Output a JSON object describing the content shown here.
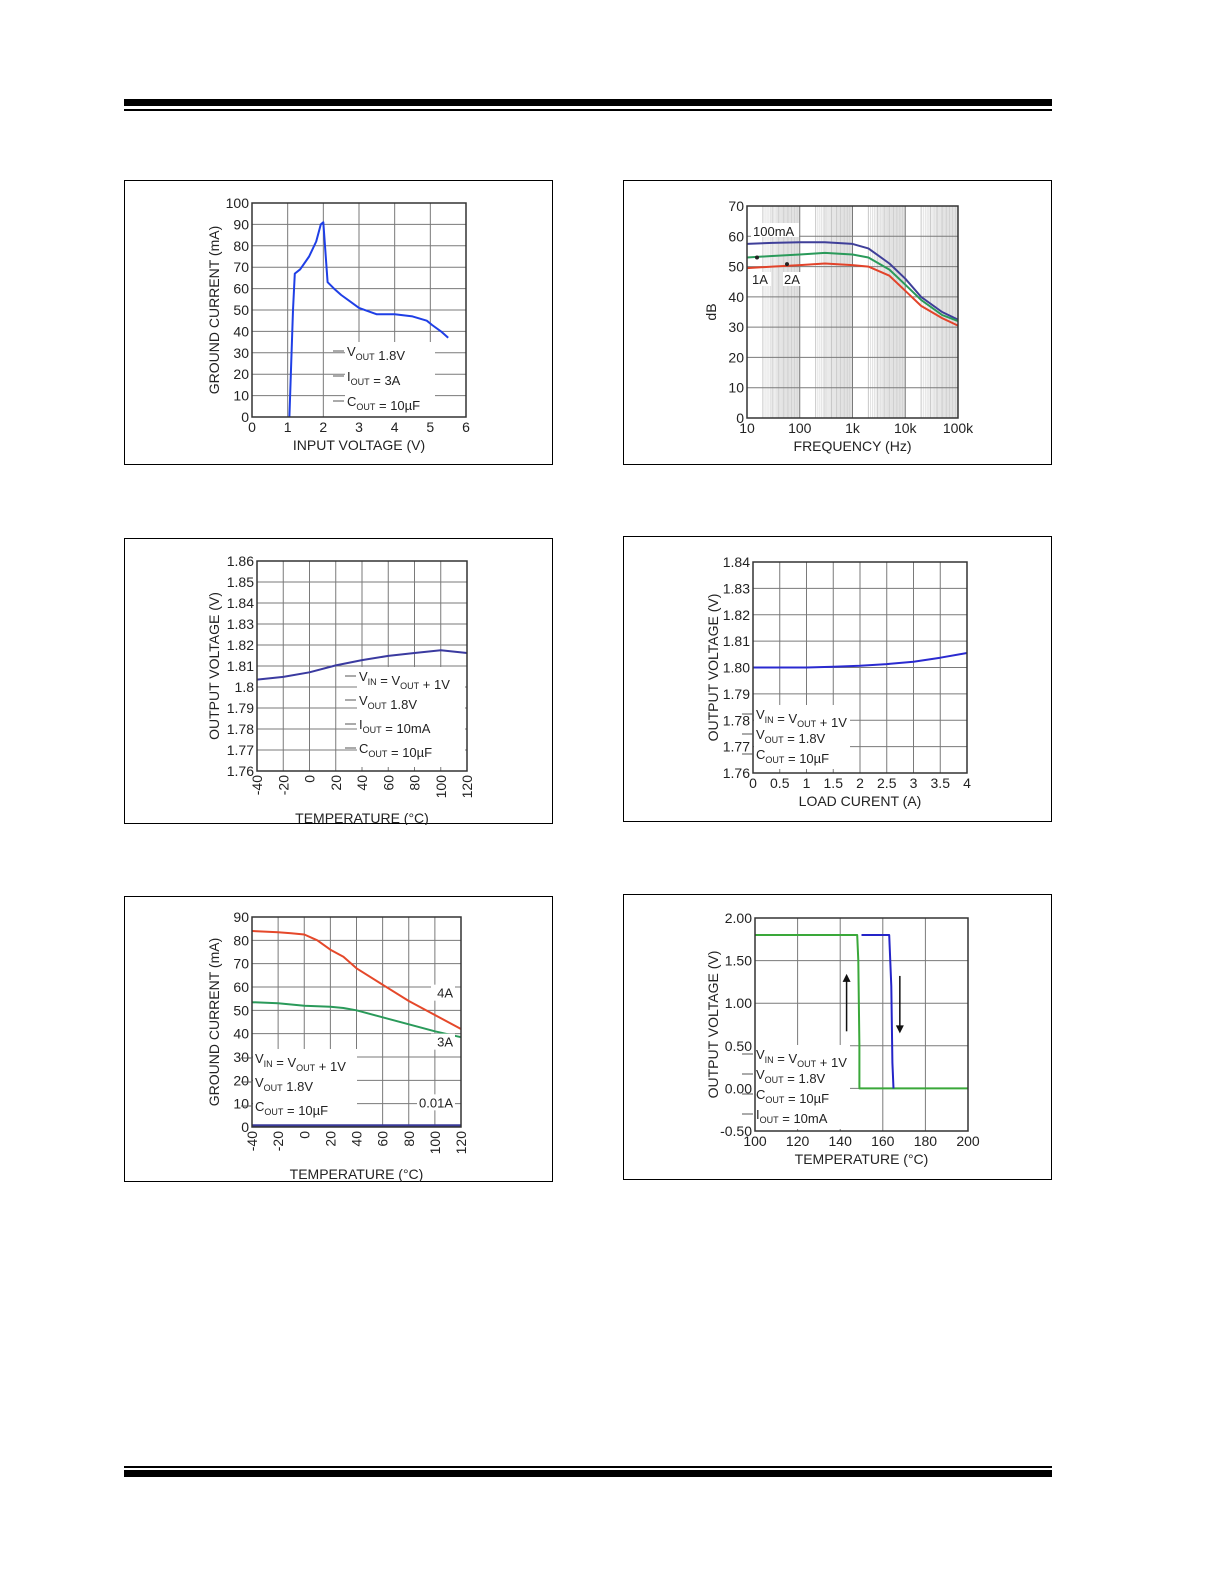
{
  "charts": [
    {
      "id": "c1",
      "chart_data": {
        "type": "line",
        "xlabel": "INPUT VOLTAGE (V)",
        "ylabel": "GROUND CURRENT (mA)",
        "xlim": [
          0,
          6
        ],
        "ylim": [
          0,
          100
        ],
        "xticks": [
          "0",
          "1",
          "2",
          "3",
          "4",
          "5",
          "6"
        ],
        "yticks": [
          "0",
          "10",
          "20",
          "30",
          "40",
          "50",
          "60",
          "70",
          "80",
          "90",
          "100"
        ],
        "grid": true,
        "series": [
          {
            "color": "#1f3fe6",
            "x": [
              1.05,
              1.15,
              1.2,
              1.35,
              1.6,
              1.8,
              1.93,
              2.0,
              2.12,
              2.3,
              2.5,
              2.75,
              3.0,
              3.5,
              4.0,
              4.5,
              4.9,
              5.05,
              5.3,
              5.5
            ],
            "y": [
              0,
              50,
              67,
              69,
              75,
              82,
              90,
              91,
              63,
              60,
              57,
              54,
              51,
              48,
              48,
              47,
              45,
              43,
              40,
              37
            ]
          }
        ],
        "annotations": [
          {
            "main": "V",
            "sub": "OUT",
            "rest": " 1.8V"
          },
          {
            "main": "I",
            "sub": "OUT",
            "rest": " = 3A"
          },
          {
            "main": "C",
            "sub": "OUT",
            "rest": " = 10µF"
          }
        ]
      }
    },
    {
      "id": "c2",
      "chart_data": {
        "type": "line",
        "xlabel": "FREQUENCY (Hz)",
        "ylabel": "dB",
        "xscale": "log",
        "xlim": [
          10,
          100000
        ],
        "ylim": [
          0,
          70
        ],
        "xticks": [
          "10",
          "100",
          "1k",
          "10k",
          "100k"
        ],
        "yticks": [
          "0",
          "10",
          "20",
          "30",
          "40",
          "50",
          "60",
          "70"
        ],
        "grid": true,
        "series": [
          {
            "name": "100mA",
            "color": "#3f3f99",
            "x": [
              10,
              30,
              100,
              300,
              1000,
              2000,
              5000,
              10000,
              20000,
              50000,
              100000
            ],
            "y": [
              57.5,
              57.8,
              58,
              58,
              57.5,
              56,
              51,
              46,
              40,
              35,
              32.5
            ]
          },
          {
            "name": "1A",
            "color": "#2a9a5a",
            "x": [
              10,
              30,
              100,
              300,
              1000,
              2000,
              5000,
              10000,
              20000,
              50000,
              100000
            ],
            "y": [
              53,
              53.5,
              54,
              54.5,
              54,
              53,
              49,
              44,
              39,
              34,
              32
            ]
          },
          {
            "name": "2A",
            "color": "#e2432a",
            "x": [
              10,
              30,
              100,
              300,
              1000,
              2000,
              5000,
              10000,
              20000,
              50000,
              100000
            ],
            "y": [
              49.5,
              50,
              50.5,
              51,
              50.5,
              50,
              47,
              42,
              37,
              33,
              30.5
            ]
          }
        ],
        "series_labels": [
          "100mA",
          "1A",
          "2A"
        ]
      }
    },
    {
      "id": "c3",
      "chart_data": {
        "type": "line",
        "xlabel": "TEMPERATURE (°C)",
        "ylabel": "OUTPUT VOLTAGE (V)",
        "xlim": [
          -40,
          120
        ],
        "ylim": [
          1.76,
          1.86
        ],
        "xticks": [
          "-40",
          "-20",
          "0",
          "20",
          "40",
          "60",
          "80",
          "100",
          "120"
        ],
        "yticks": [
          "1.76",
          "1.77",
          "1.78",
          "1.79",
          "1.8",
          "1.81",
          "1.82",
          "1.83",
          "1.84",
          "1.85",
          "1.86"
        ],
        "grid": true,
        "series": [
          {
            "color": "#3a3aa0",
            "x": [
              -40,
              -20,
              0,
              20,
              40,
              60,
              80,
              100,
              120
            ],
            "y": [
              1.8035,
              1.8048,
              1.807,
              1.8103,
              1.8128,
              1.8148,
              1.8162,
              1.8175,
              1.8162
            ]
          }
        ],
        "annotations": [
          {
            "main": "V",
            "sub": "IN",
            "rest": " = V",
            "sub2": "OUT",
            "rest2": " + 1V"
          },
          {
            "main": "V",
            "sub": "OUT",
            "rest": " 1.8V"
          },
          {
            "main": "I",
            "sub": "OUT",
            "rest": " = 10mA"
          },
          {
            "main": "C",
            "sub": "OUT",
            "rest": " = 10µF"
          }
        ]
      }
    },
    {
      "id": "c4",
      "chart_data": {
        "type": "line",
        "xlabel": "LOAD CURENT (A)",
        "ylabel": "OUTPUT VOLTAGE (V)",
        "xlim": [
          0,
          4
        ],
        "ylim": [
          1.76,
          1.84
        ],
        "xticks": [
          "0",
          "0.5",
          "1",
          "1.5",
          "2",
          "2.5",
          "3",
          "3.5",
          "4"
        ],
        "yticks": [
          "1.76",
          "1.77",
          "1.78",
          "1.79",
          "1.80",
          "1.81",
          "1.82",
          "1.83",
          "1.84"
        ],
        "grid": true,
        "series": [
          {
            "color": "#2a2ad0",
            "x": [
              0,
              0.5,
              1,
              1.5,
              2,
              2.5,
              3,
              3.5,
              4
            ],
            "y": [
              1.8,
              1.8,
              1.8,
              1.8003,
              1.8007,
              1.8013,
              1.8022,
              1.8037,
              1.8055
            ]
          }
        ],
        "annotations": [
          {
            "main": "V",
            "sub": "IN",
            "rest": " = V",
            "sub2": "OUT",
            "rest2": " + 1V"
          },
          {
            "main": "V",
            "sub": "OUT",
            "rest": " = 1.8V"
          },
          {
            "main": "C",
            "sub": "OUT",
            "rest": " = 10µF"
          }
        ]
      }
    },
    {
      "id": "c5",
      "chart_data": {
        "type": "line",
        "xlabel": "TEMPERATURE (°C)",
        "ylabel": "GROUND CURRENT (mA)",
        "xlim": [
          -40,
          120
        ],
        "ylim": [
          0,
          90
        ],
        "xticks": [
          "-40",
          "-20",
          "0",
          "20",
          "40",
          "60",
          "80",
          "100",
          "120"
        ],
        "yticks": [
          "0",
          "10",
          "20",
          "30",
          "40",
          "50",
          "60",
          "70",
          "80",
          "90"
        ],
        "grid": true,
        "series": [
          {
            "name": "4A",
            "color": "#e5482a",
            "x": [
              -40,
              -20,
              -10,
              0,
              10,
              20,
              30,
              40,
              60,
              80,
              100,
              120
            ],
            "y": [
              84,
              83.5,
              83,
              82.5,
              80,
              76,
              73,
              68,
              61,
              54,
              48,
              42
            ]
          },
          {
            "name": "3A",
            "color": "#2a9a5a",
            "x": [
              -40,
              -20,
              0,
              20,
              30,
              40,
              60,
              80,
              100,
              120
            ],
            "y": [
              53.5,
              53,
              52,
              51.5,
              51,
              50,
              47,
              44,
              41,
              38.5
            ]
          },
          {
            "name": "0.01A",
            "color": "#3a3a9a",
            "x": [
              -40,
              120
            ],
            "y": [
              0.5,
              0.5
            ]
          }
        ],
        "series_labels": [
          "4A",
          "3A",
          "0.01A"
        ],
        "annotations": [
          {
            "main": "V",
            "sub": "IN",
            "rest": " = V",
            "sub2": "OUT",
            "rest2": " + 1V"
          },
          {
            "main": "V",
            "sub": "OUT",
            "rest": " 1.8V"
          },
          {
            "main": "C",
            "sub": "OUT",
            "rest": " = 10µF"
          }
        ]
      }
    },
    {
      "id": "c6",
      "chart_data": {
        "type": "line",
        "xlabel": "TEMPERATURE (°C)",
        "ylabel": "OUTPUT VOLTAGE (V)",
        "xlim": [
          100,
          200
        ],
        "ylim": [
          -0.5,
          2.0
        ],
        "xticks": [
          "100",
          "120",
          "140",
          "160",
          "180",
          "200"
        ],
        "yticks": [
          "-0.50",
          "0.00",
          "0.50",
          "1.00",
          "1.50",
          "2.00"
        ],
        "grid": true,
        "series": [
          {
            "color": "#3aa83a",
            "x": [
              100,
              148,
              148.5,
              149,
              149,
              200
            ],
            "y": [
              1.8,
              1.8,
              1.5,
              0.5,
              0.0,
              0.0
            ]
          },
          {
            "color": "#2424c8",
            "x": [
              150,
              163,
              164,
              164.5,
              165
            ],
            "y": [
              1.8,
              1.8,
              1.2,
              0.3,
              0.0
            ]
          }
        ],
        "annotations": [
          {
            "main": "V",
            "sub": "IN",
            "rest": " = V",
            "sub2": "OUT",
            "rest2": " + 1V"
          },
          {
            "main": "V",
            "sub": "OUT",
            "rest": " = 1.8V"
          },
          {
            "main": "C",
            "sub": "OUT",
            "rest": " = 10µF"
          },
          {
            "main": "I",
            "sub": "OUT",
            "rest": " = 10mA"
          }
        ],
        "arrows": [
          "up",
          "down"
        ]
      }
    }
  ]
}
